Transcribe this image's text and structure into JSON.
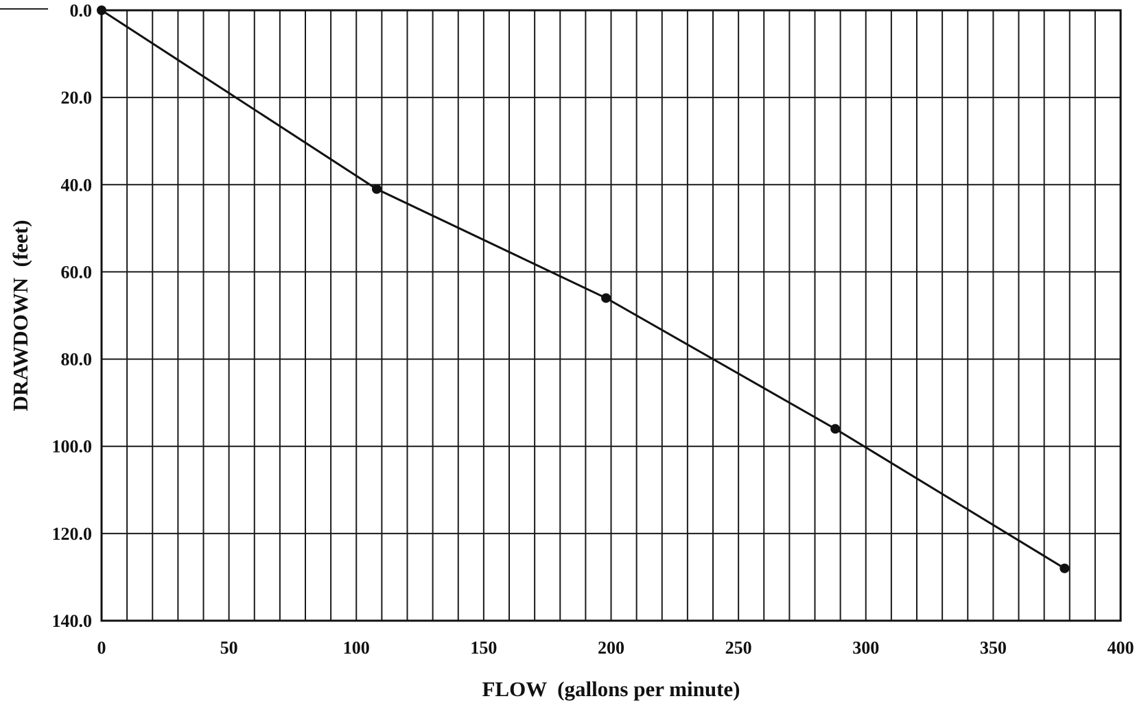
{
  "chart_data": {
    "type": "line",
    "title": "",
    "xlabel": "FLOW  (gallons per minute)",
    "ylabel": "DRAWDOWN  (feet)",
    "xlim": [
      0,
      400
    ],
    "ylim": [
      0,
      140
    ],
    "y_inverted": true,
    "x_ticks": [
      "0",
      "50",
      "100",
      "150",
      "200",
      "250",
      "300",
      "350",
      "400"
    ],
    "y_ticks": [
      "0.0",
      "20.0",
      "40.0",
      "60.0",
      "80.0",
      "100.0",
      "120.0",
      "140.0"
    ],
    "grid": true,
    "legend": "none",
    "line_color": "#111111",
    "series": [
      {
        "x": [
          0,
          108,
          198,
          288,
          378
        ],
        "y": [
          0,
          41,
          66,
          96,
          128
        ]
      }
    ]
  }
}
